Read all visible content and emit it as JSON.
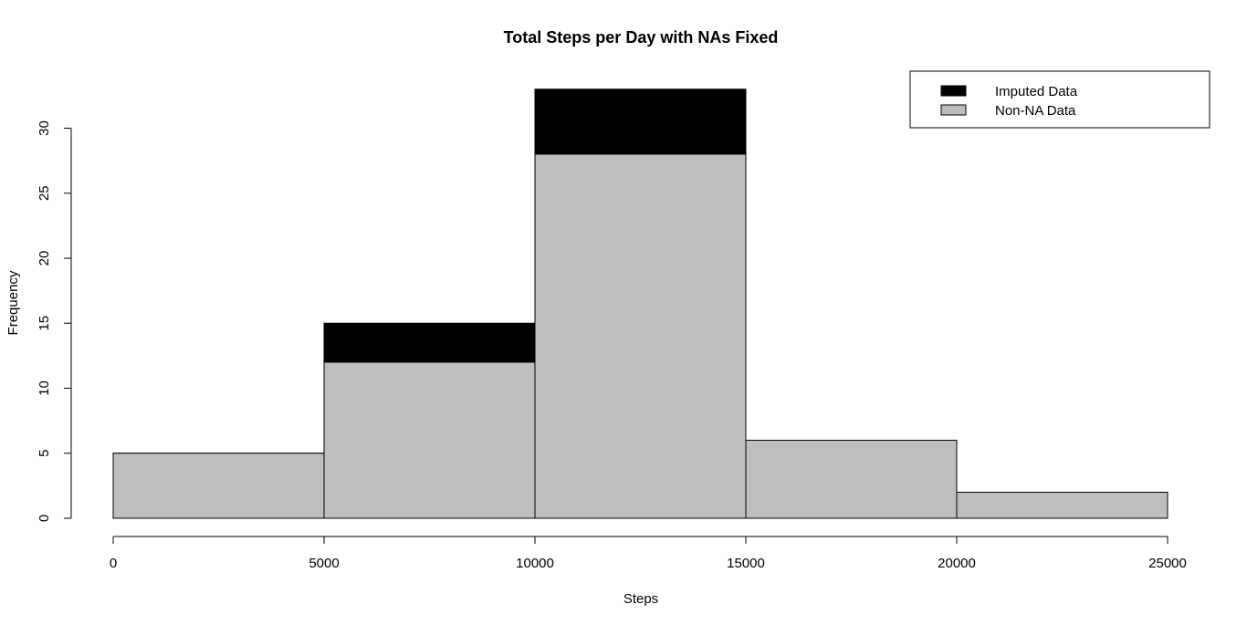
{
  "chart_data": {
    "type": "bar",
    "title": "Total Steps per Day with NAs Fixed",
    "xlabel": "Steps",
    "ylabel": "Frequency",
    "xlim": [
      0,
      25000
    ],
    "ylim": [
      0,
      33
    ],
    "bins": [
      [
        0,
        5000
      ],
      [
        5000,
        10000
      ],
      [
        10000,
        15000
      ],
      [
        15000,
        20000
      ],
      [
        20000,
        25000
      ]
    ],
    "series": [
      {
        "name": "Imputed Data",
        "color": "#000000",
        "values": [
          5,
          15,
          33,
          6,
          2
        ]
      },
      {
        "name": "Non-NA Data",
        "color": "#bebebe",
        "values": [
          5,
          12,
          28,
          6,
          2
        ]
      }
    ],
    "x_ticks": [
      0,
      5000,
      10000,
      15000,
      20000,
      25000
    ],
    "y_ticks": [
      0,
      5,
      10,
      15,
      20,
      25,
      30
    ],
    "legend_position": "top-right",
    "grid": false
  }
}
